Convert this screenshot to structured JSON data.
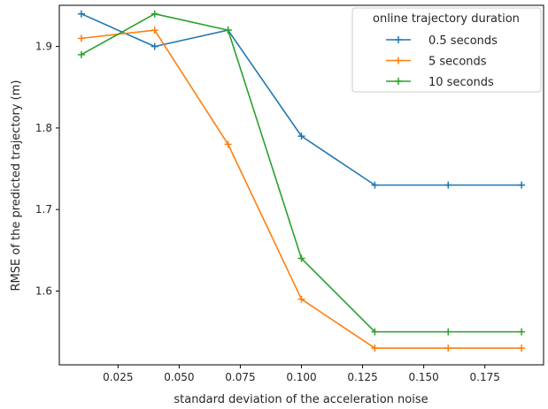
{
  "chart_data": {
    "type": "line",
    "xlabel": "standard deviation of the acceleration noise",
    "ylabel": "RMSE of the predicted trajectory (m)",
    "xlim": [
      0.001,
      0.199
    ],
    "ylim": [
      1.5095,
      1.9505
    ],
    "xticks": [
      0.025,
      0.05,
      0.075,
      0.1,
      0.125,
      0.15,
      0.175
    ],
    "xtick_labels": [
      "0.025",
      "0.050",
      "0.075",
      "0.100",
      "0.125",
      "0.150",
      "0.175"
    ],
    "yticks": [
      1.6,
      1.7,
      1.8,
      1.9
    ],
    "ytick_labels": [
      "1.6",
      "1.7",
      "1.8",
      "1.9"
    ],
    "grid": false,
    "legend": {
      "title": "online trajectory duration",
      "placement": "top-right"
    },
    "x": [
      0.01,
      0.04,
      0.07,
      0.1,
      0.13,
      0.16,
      0.19
    ],
    "series": [
      {
        "name": "0.5 seconds",
        "color": "#1f77b4",
        "marker": "plus",
        "values": [
          1.94,
          1.9,
          1.92,
          1.79,
          1.73,
          1.73,
          1.73
        ]
      },
      {
        "name": "5 seconds",
        "color": "#ff7f0e",
        "marker": "plus",
        "values": [
          1.91,
          1.92,
          1.78,
          1.59,
          1.53,
          1.53,
          1.53
        ]
      },
      {
        "name": "10 seconds",
        "color": "#2ca02c",
        "marker": "plus",
        "values": [
          1.89,
          1.94,
          1.92,
          1.64,
          1.55,
          1.55,
          1.55
        ]
      }
    ]
  }
}
